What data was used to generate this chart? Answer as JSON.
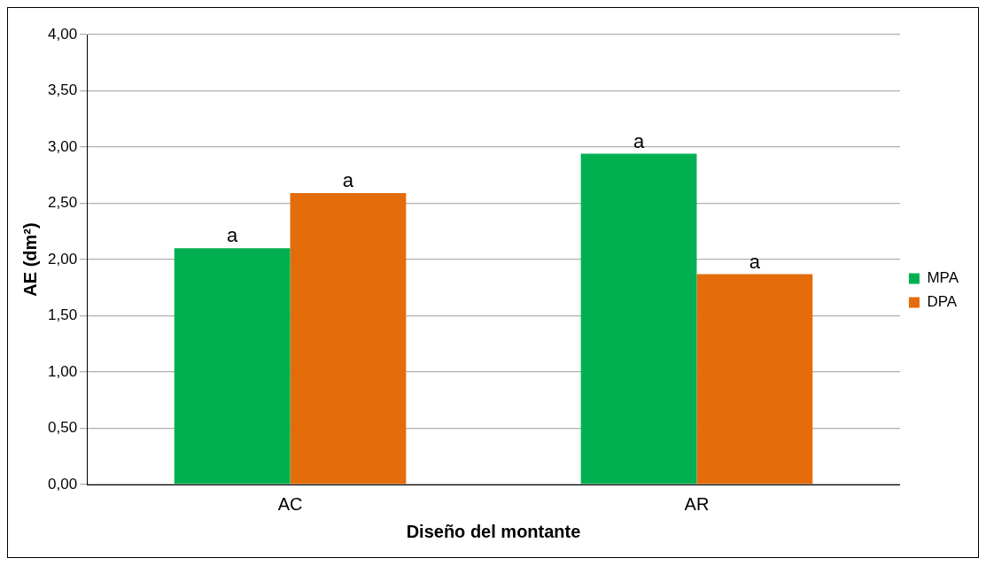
{
  "chart_data": {
    "type": "bar",
    "xlabel": "Diseño del montante",
    "ylabel": "AE (dm²)",
    "categories": [
      "AC",
      "AR"
    ],
    "series": [
      {
        "name": "MPA",
        "color": "#00b050",
        "values": [
          2.1,
          2.94
        ]
      },
      {
        "name": "DPA",
        "color": "#e46c0a",
        "values": [
          2.59,
          1.87
        ]
      }
    ],
    "ylim": [
      0,
      4
    ],
    "yticks": [
      {
        "value": 0,
        "label": "0,00"
      },
      {
        "value": 0.5,
        "label": "0,50"
      },
      {
        "value": 1,
        "label": "1,00"
      },
      {
        "value": 1.5,
        "label": "1,50"
      },
      {
        "value": 2,
        "label": "2,00"
      },
      {
        "value": 2.5,
        "label": "2,50"
      },
      {
        "value": 3,
        "label": "3,00"
      },
      {
        "value": 3.5,
        "label": "3,50"
      },
      {
        "value": 4,
        "label": "4,00"
      }
    ],
    "grid": "y",
    "legend": "right",
    "annotations": [
      {
        "text": "a",
        "x": "AC",
        "y": 2.1
      },
      {
        "text": "a",
        "x": "AC",
        "y": 2.59
      },
      {
        "text": "a",
        "x": "AR",
        "y": 2.94
      },
      {
        "text": "a",
        "x": "AR",
        "y": 1.87
      }
    ]
  }
}
